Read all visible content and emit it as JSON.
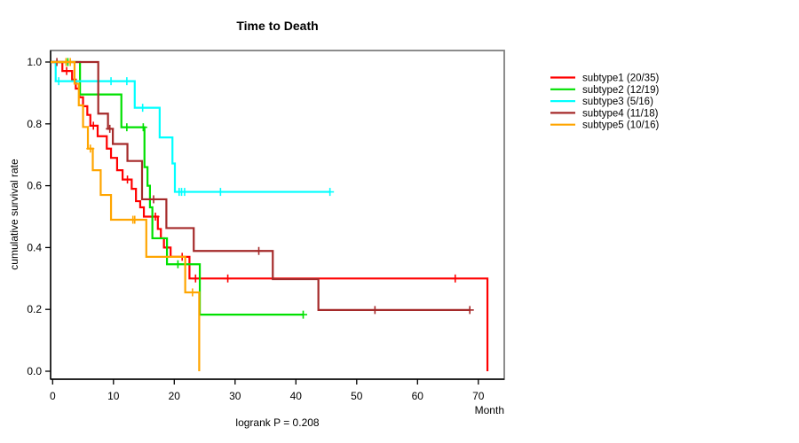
{
  "chart_data": {
    "type": "line",
    "subtype": "kaplan-meier-step",
    "title": "Time to Death",
    "xlabel": "Month",
    "ylabel": "cumulative survival rate",
    "footnote": "logrank P = 0.208",
    "x_ticks": [
      0,
      10,
      20,
      30,
      40,
      50,
      60,
      70
    ],
    "y_ticks": [
      "0.0",
      "0.2",
      "0.4",
      "0.6",
      "0.8",
      "1.0"
    ],
    "xlim": [
      0,
      74
    ],
    "ylim": [
      0.0,
      1.0
    ],
    "grid": false,
    "legend_position": "right-outside",
    "frame_color": "#808080",
    "axis_color": "#000000",
    "series": [
      {
        "name": "subtype1 (20/35)",
        "color": "#FF0000",
        "steps": [
          [
            0,
            1.0
          ],
          [
            1.6,
            0.971
          ],
          [
            3.2,
            0.943
          ],
          [
            3.8,
            0.914
          ],
          [
            4.4,
            0.886
          ],
          [
            5.0,
            0.857
          ],
          [
            5.7,
            0.829
          ],
          [
            6.2,
            0.794
          ],
          [
            7.4,
            0.76
          ],
          [
            8.9,
            0.72
          ],
          [
            9.6,
            0.69
          ],
          [
            10.6,
            0.65
          ],
          [
            11.5,
            0.62
          ],
          [
            13.0,
            0.59
          ],
          [
            13.7,
            0.55
          ],
          [
            14.4,
            0.53
          ],
          [
            15.0,
            0.5
          ],
          [
            17.3,
            0.46
          ],
          [
            17.8,
            0.43
          ],
          [
            18.3,
            0.4
          ],
          [
            19.4,
            0.37
          ],
          [
            22.5,
            0.3
          ],
          [
            71.5,
            0.0
          ]
        ],
        "end_month": 71.5,
        "censors": [
          [
            2.3,
            0.971
          ],
          [
            6.7,
            0.794
          ],
          [
            12.3,
            0.62
          ],
          [
            16.9,
            0.5
          ],
          [
            21.3,
            0.37
          ],
          [
            23.5,
            0.3
          ],
          [
            28.8,
            0.3
          ],
          [
            66.2,
            0.3
          ]
        ]
      },
      {
        "name": "subtype2 (12/19)",
        "color": "#00E000",
        "steps": [
          [
            0,
            1.0
          ],
          [
            4.5,
            0.895
          ],
          [
            11.3,
            0.789
          ],
          [
            15.1,
            0.66
          ],
          [
            15.6,
            0.6
          ],
          [
            16.0,
            0.53
          ],
          [
            16.4,
            0.43
          ],
          [
            18.8,
            0.346
          ],
          [
            24.2,
            0.183
          ]
        ],
        "end_month": 41.2,
        "censors": [
          [
            2.5,
            1.0
          ],
          [
            12.2,
            0.789
          ],
          [
            14.9,
            0.789
          ],
          [
            20.6,
            0.346
          ],
          [
            41.2,
            0.183
          ]
        ]
      },
      {
        "name": "subtype3 (5/16)",
        "color": "#00FFFF",
        "steps": [
          [
            0,
            1.0
          ],
          [
            0.5,
            0.938
          ],
          [
            13.5,
            0.852
          ],
          [
            17.6,
            0.756
          ],
          [
            19.7,
            0.672
          ],
          [
            20.1,
            0.58
          ]
        ],
        "end_month": 45.6,
        "censors": [
          [
            1.0,
            0.938
          ],
          [
            9.6,
            0.938
          ],
          [
            12.2,
            0.938
          ],
          [
            14.8,
            0.852
          ],
          [
            20.8,
            0.58
          ],
          [
            21.2,
            0.58
          ],
          [
            21.7,
            0.58
          ],
          [
            27.6,
            0.58
          ],
          [
            45.6,
            0.58
          ]
        ]
      },
      {
        "name": "subtype4 (11/18)",
        "color": "#A52A2A",
        "steps": [
          [
            0,
            1.0
          ],
          [
            7.5,
            0.833
          ],
          [
            9.1,
            0.784
          ],
          [
            9.9,
            0.735
          ],
          [
            12.3,
            0.68
          ],
          [
            14.7,
            0.556
          ],
          [
            18.7,
            0.463
          ],
          [
            23.2,
            0.389
          ],
          [
            36.2,
            0.298
          ],
          [
            43.7,
            0.198
          ]
        ],
        "end_month": 68.6,
        "censors": [
          [
            0.7,
            1.0
          ],
          [
            9.4,
            0.784
          ],
          [
            16.6,
            0.556
          ],
          [
            33.9,
            0.389
          ],
          [
            53.0,
            0.198
          ],
          [
            68.6,
            0.198
          ]
        ]
      },
      {
        "name": "subtype5 (10/16)",
        "color": "#FFA500",
        "steps": [
          [
            0,
            1.0
          ],
          [
            3.6,
            0.93
          ],
          [
            4.3,
            0.86
          ],
          [
            5.0,
            0.79
          ],
          [
            5.8,
            0.72
          ],
          [
            6.6,
            0.65
          ],
          [
            7.9,
            0.57
          ],
          [
            9.6,
            0.49
          ],
          [
            15.4,
            0.37
          ],
          [
            21.8,
            0.255
          ],
          [
            24.1,
            0.0
          ]
        ],
        "end_month": 24.1,
        "censors": [
          [
            2.2,
            1.0
          ],
          [
            2.9,
            1.0
          ],
          [
            6.2,
            0.72
          ],
          [
            13.2,
            0.49
          ],
          [
            13.5,
            0.49
          ],
          [
            23.0,
            0.255
          ]
        ]
      }
    ]
  }
}
